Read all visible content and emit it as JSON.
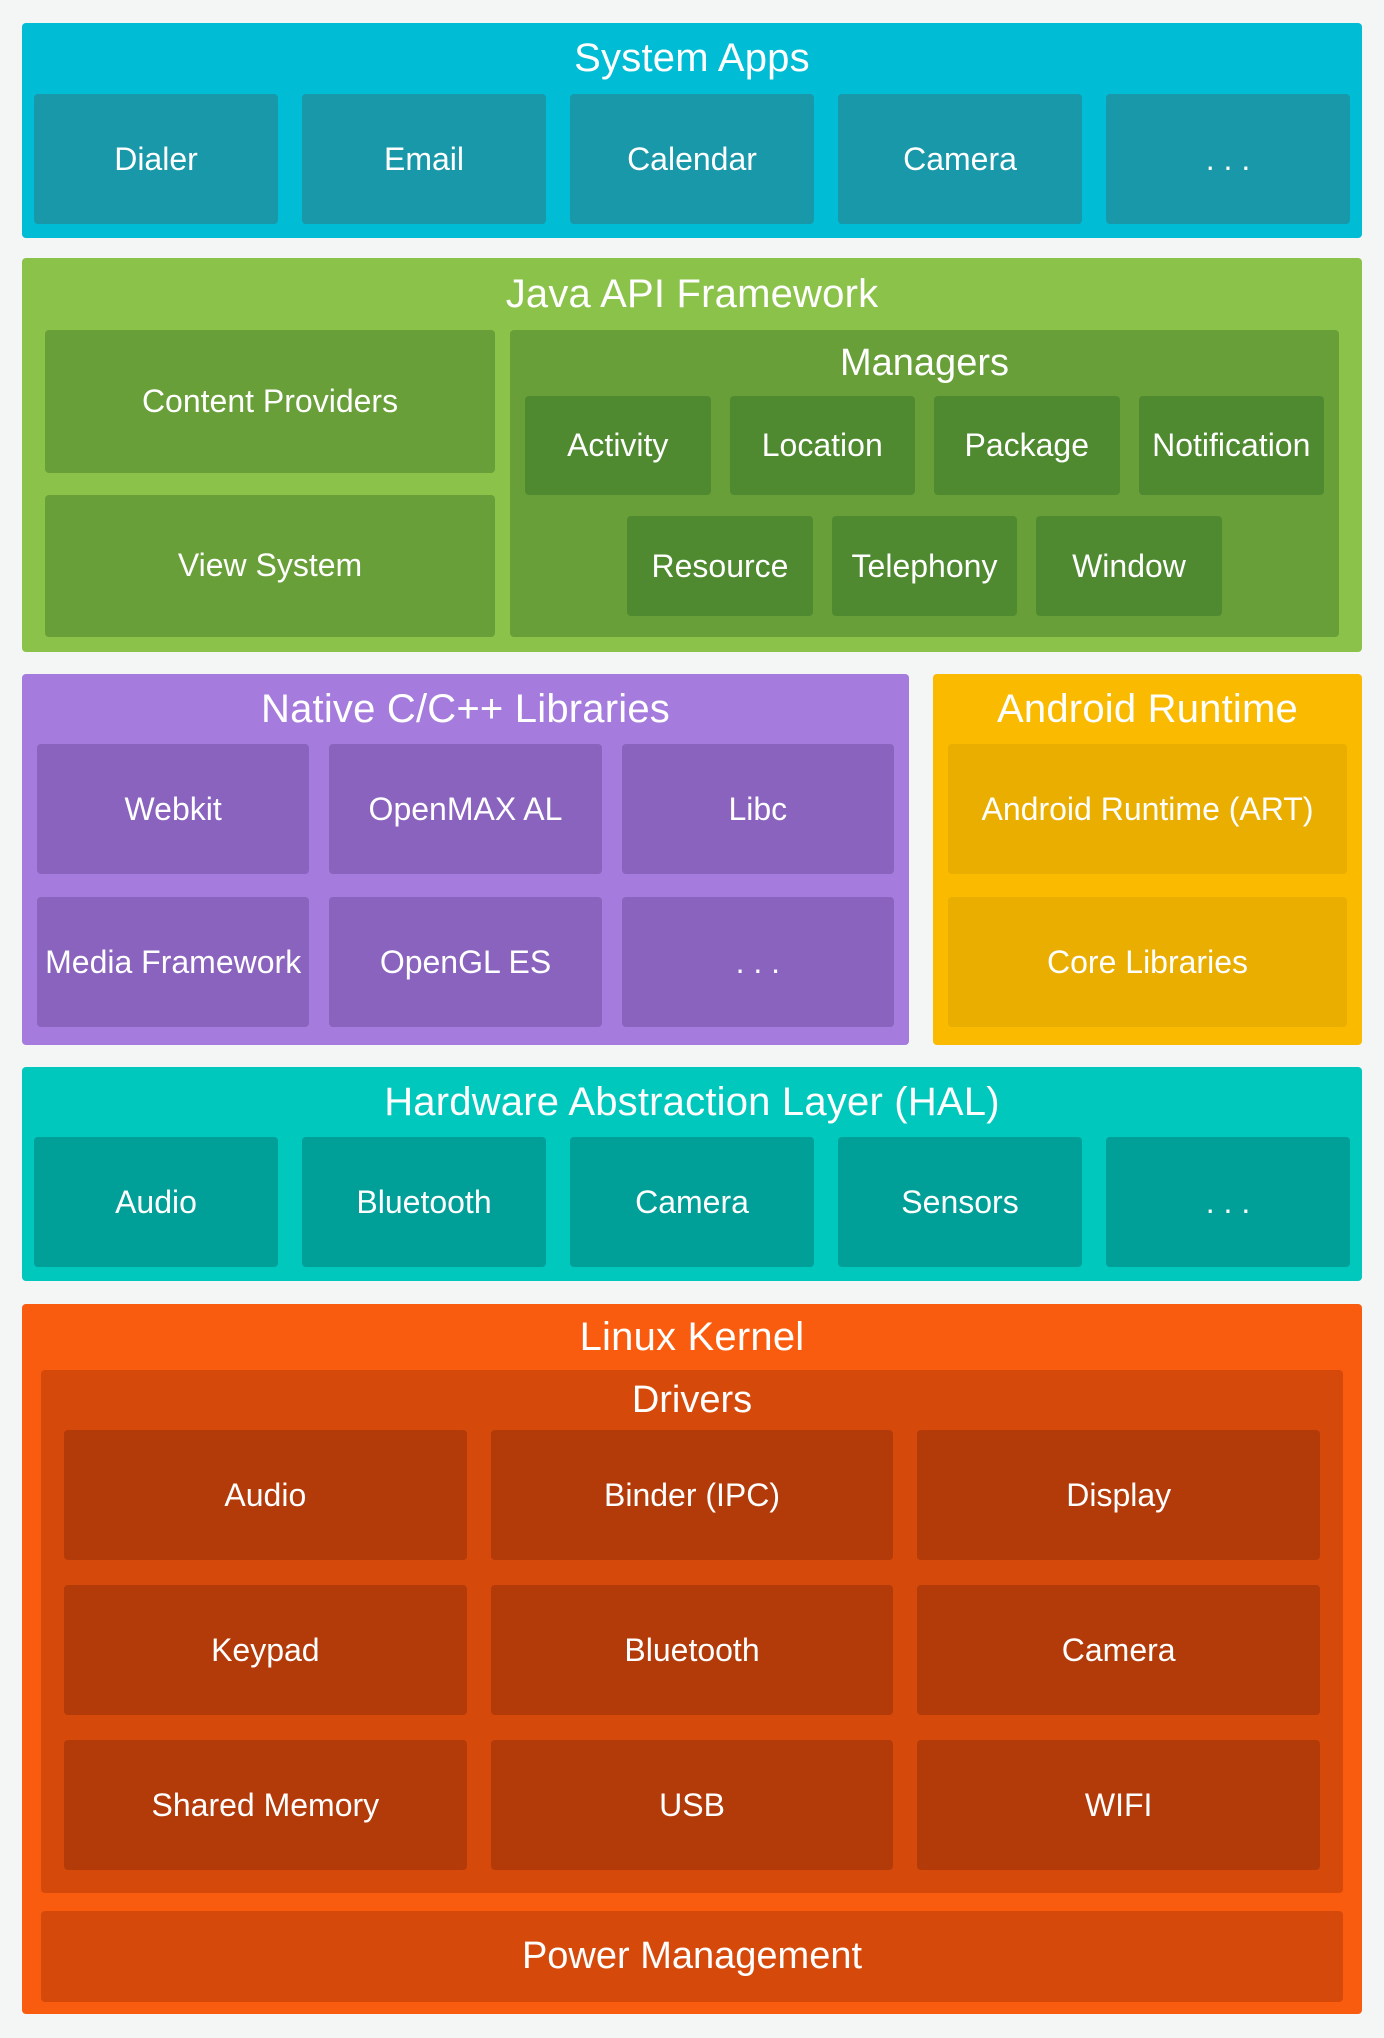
{
  "page": {
    "background": "#f4f5f5",
    "text_color": "#ffffff"
  },
  "sections": {
    "system_apps": {
      "title": "System Apps",
      "colors": {
        "band": "#00bcd4",
        "box": "#1898a8"
      },
      "items": [
        "Dialer",
        "Email",
        "Calendar",
        "Camera",
        ". . ."
      ]
    },
    "java_api": {
      "title": "Java API Framework",
      "colors": {
        "band": "#8bc34a",
        "box": "#689f38",
        "sub_box": "#4f8a30"
      },
      "left_items": [
        "Content Providers",
        "View System"
      ],
      "managers": {
        "title": "Managers",
        "rows": [
          [
            "Activity",
            "Location",
            "Package",
            "Notification"
          ],
          [
            "Resource",
            "Telephony",
            "Window"
          ]
        ]
      }
    },
    "native_libraries": {
      "title": "Native C/C++ Libraries",
      "colors": {
        "band": "#a57bdd",
        "box": "#8a63be"
      },
      "rows": [
        [
          "Webkit",
          "OpenMAX AL",
          "Libc"
        ],
        [
          "Media Framework",
          "OpenGL ES",
          ". . ."
        ]
      ]
    },
    "android_runtime": {
      "title": "Android Runtime",
      "colors": {
        "band": "#f9ba00",
        "box": "#eaae00"
      },
      "items": [
        "Android Runtime (ART)",
        "Core Libraries"
      ]
    },
    "hal": {
      "title": "Hardware Abstraction Layer (HAL)",
      "colors": {
        "band": "#00c8bc",
        "box": "#00a099"
      },
      "items": [
        "Audio",
        "Bluetooth",
        "Camera",
        "Sensors",
        ". . ."
      ]
    },
    "linux_kernel": {
      "title": "Linux Kernel",
      "colors": {
        "band": "#fa5c0f",
        "container": "#d5490b",
        "box": "#b33b0a"
      },
      "drivers": {
        "title": "Drivers",
        "rows": [
          [
            "Audio",
            "Binder (IPC)",
            "Display"
          ],
          [
            "Keypad",
            "Bluetooth",
            "Camera"
          ],
          [
            "Shared Memory",
            "USB",
            "WIFI"
          ]
        ]
      },
      "power_management": "Power Management"
    }
  }
}
